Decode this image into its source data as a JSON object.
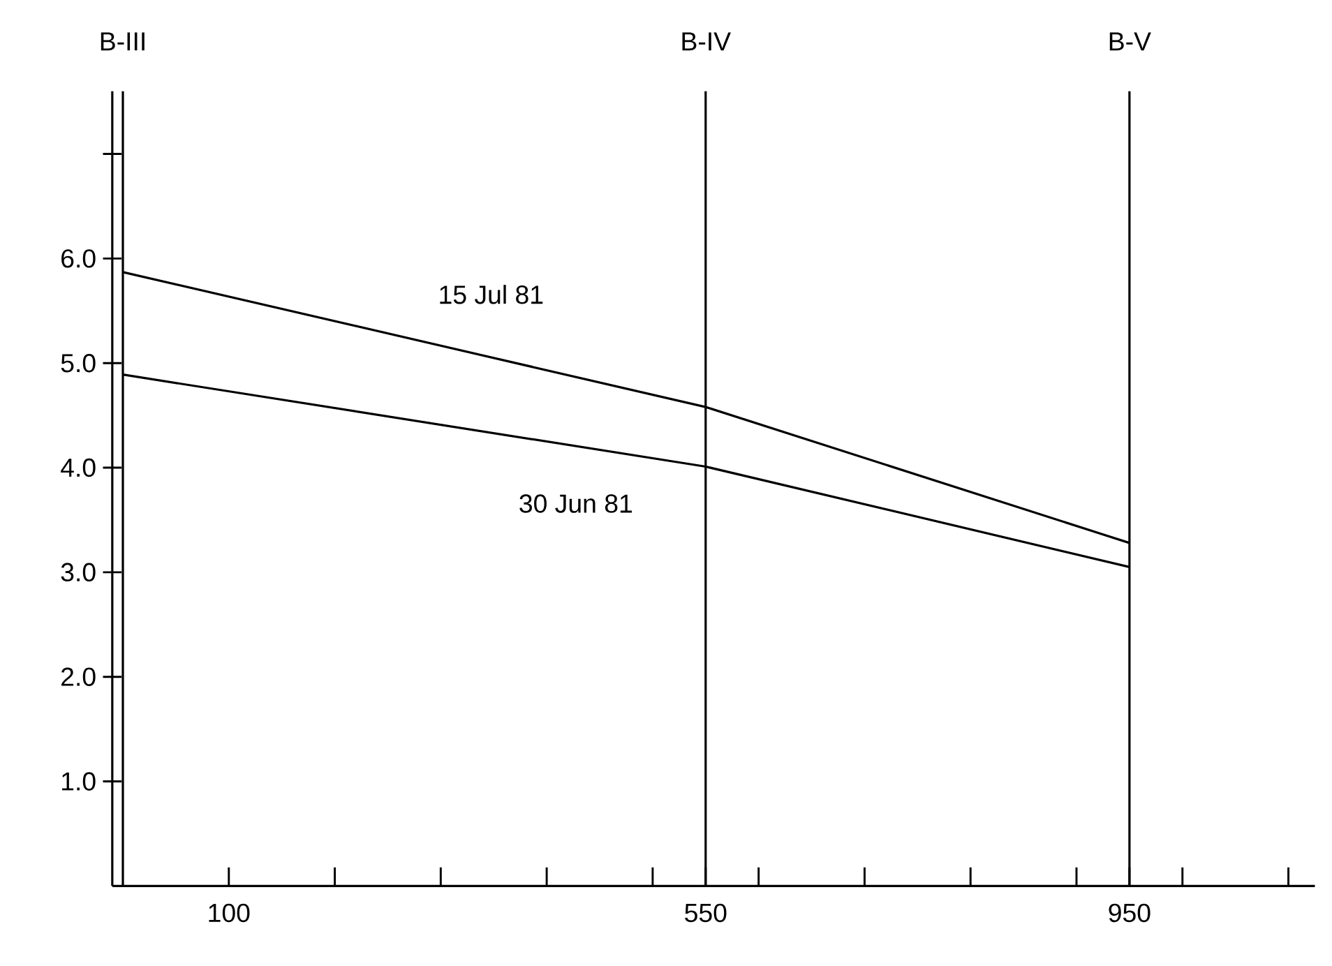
{
  "chart_data": {
    "type": "line",
    "x": [
      0,
      550,
      950
    ],
    "series": [
      {
        "name": "15 Jul 81",
        "color": "#000000",
        "values": [
          5.87,
          4.58,
          3.28
        ]
      },
      {
        "name": "30 Jun 81",
        "color": "#000000",
        "values": [
          4.89,
          4.01,
          3.05
        ]
      }
    ],
    "xlim": [
      -10,
      1125
    ],
    "ylim": [
      0,
      7.6
    ],
    "xticks": [
      {
        "value": 100,
        "label": "100"
      },
      {
        "value": 200,
        "label": null
      },
      {
        "value": 300,
        "label": null
      },
      {
        "value": 400,
        "label": null
      },
      {
        "value": 500,
        "label": null
      },
      {
        "value": 550,
        "label": "550"
      },
      {
        "value": 600,
        "label": null
      },
      {
        "value": 700,
        "label": null
      },
      {
        "value": 800,
        "label": null
      },
      {
        "value": 900,
        "label": null
      },
      {
        "value": 950,
        "label": "950"
      },
      {
        "value": 1000,
        "label": null
      },
      {
        "value": 1100,
        "label": null
      }
    ],
    "yticks": [
      {
        "value": 1,
        "label": "1.0"
      },
      {
        "value": 2,
        "label": "2.0"
      },
      {
        "value": 3,
        "label": "3.0"
      },
      {
        "value": 4,
        "label": "4.0"
      },
      {
        "value": 5,
        "label": "5.0"
      },
      {
        "value": 6,
        "label": "6.0"
      },
      {
        "value": 7,
        "label": null
      }
    ],
    "ref_lines": [
      {
        "axis": "x",
        "value": 0,
        "label": "B-III"
      },
      {
        "axis": "x",
        "value": 550,
        "label": "B-IV"
      },
      {
        "axis": "x",
        "value": 950,
        "label": "B-V"
      }
    ],
    "legend": false,
    "grid": false,
    "marker": "none",
    "line_style": "solid"
  }
}
